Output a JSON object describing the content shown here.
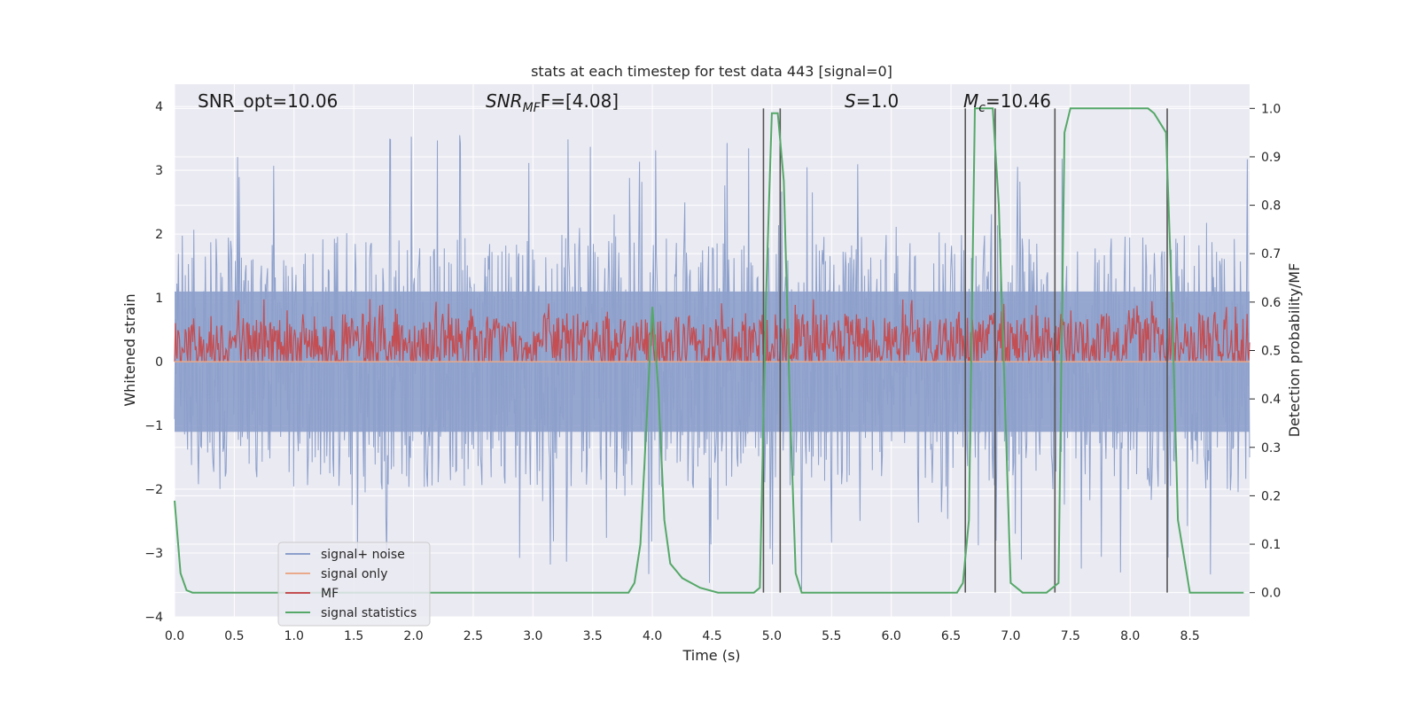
{
  "chart_data": {
    "type": "line",
    "title": "stats at each timestep for test data 443 [signal=0]",
    "xlabel": "Time (s)",
    "ylabel": "Whitened strain",
    "y2label": "Detection probability/MF",
    "xlim": [
      0,
      9.0
    ],
    "ylim": [
      -4.0,
      4.35
    ],
    "y2lim": [
      -0.05,
      1.05
    ],
    "xticks": [
      "0.0",
      "0.5",
      "1.0",
      "1.5",
      "2.0",
      "2.5",
      "3.0",
      "3.5",
      "4.0",
      "4.5",
      "5.0",
      "5.5",
      "6.0",
      "6.5",
      "7.0",
      "7.5",
      "8.0",
      "8.5"
    ],
    "yticks": [
      "−4",
      "−3",
      "−2",
      "−1",
      "0",
      "1",
      "2",
      "3",
      "4"
    ],
    "y2ticks": [
      "0.0",
      "0.1",
      "0.2",
      "0.3",
      "0.4",
      "0.5",
      "0.6",
      "0.7",
      "0.8",
      "0.9",
      "1.0"
    ],
    "annotations": {
      "snr_opt": "SNR_opt=10.06",
      "snr_mf_main": "SNR",
      "snr_mf_sub": "MF",
      "snr_mf_value": "F=[4.08]",
      "s_main": "S",
      "s_value": "=1.0",
      "mc_main": "M",
      "mc_sub": "c",
      "mc_value": "=10.46"
    },
    "legend": {
      "placement": "bottom-left",
      "entries": [
        {
          "label": "signal+ noise",
          "color": "#8da0cb"
        },
        {
          "label": "signal only",
          "color": "#e9a98a"
        },
        {
          "label": "MF",
          "color": "#c44e52"
        },
        {
          "label": "signal statistics",
          "color": "#55a868"
        }
      ]
    },
    "series": [
      {
        "name": "signal+ noise",
        "kind": "noise",
        "color": "#8da0cb",
        "center": 0.0,
        "typical_range": [
          -2.0,
          2.0
        ],
        "extreme_range": [
          -3.6,
          3.6
        ]
      },
      {
        "name": "signal only",
        "kind": "flat",
        "color": "#e9a98a",
        "value": 0.0
      },
      {
        "name": "MF",
        "kind": "noise",
        "color": "#c44e52",
        "center": 0.3,
        "typical_range": [
          0.0,
          0.75
        ],
        "extreme_range": [
          0.0,
          1.0
        ]
      },
      {
        "name": "signal statistics",
        "kind": "line",
        "axis": "right",
        "color": "#55a868",
        "x": [
          0.0,
          0.05,
          0.1,
          0.15,
          3.8,
          3.85,
          3.9,
          4.0,
          4.05,
          4.1,
          4.15,
          4.25,
          4.4,
          4.55,
          4.7,
          4.85,
          4.9,
          4.95,
          5.0,
          5.05,
          5.1,
          5.15,
          5.2,
          5.25,
          6.55,
          6.6,
          6.65,
          6.7,
          6.85,
          6.9,
          7.0,
          7.1,
          7.3,
          7.4,
          7.45,
          7.5,
          8.15,
          8.2,
          8.3,
          8.35,
          8.4,
          8.5,
          8.95
        ],
        "y": [
          0.19,
          0.04,
          0.005,
          0.0,
          0.0,
          0.02,
          0.1,
          0.59,
          0.42,
          0.15,
          0.06,
          0.03,
          0.01,
          0.0,
          0.0,
          0.0,
          0.01,
          0.6,
          0.99,
          0.99,
          0.85,
          0.4,
          0.04,
          0.0,
          0.0,
          0.02,
          0.15,
          1.0,
          1.0,
          0.8,
          0.02,
          0.0,
          0.0,
          0.02,
          0.95,
          1.0,
          1.0,
          0.99,
          0.95,
          0.6,
          0.15,
          0.0,
          0.0
        ]
      }
    ],
    "vertical_markers": [
      4.93,
      5.07,
      6.62,
      6.87,
      7.37,
      8.31
    ]
  }
}
